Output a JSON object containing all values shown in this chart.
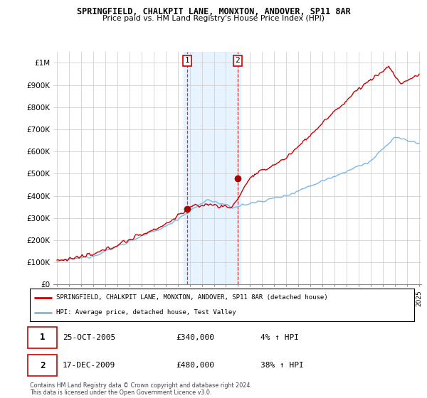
{
  "title_line1": "SPRINGFIELD, CHALKPIT LANE, MONXTON, ANDOVER, SP11 8AR",
  "title_line2": "Price paid vs. HM Land Registry's House Price Index (HPI)",
  "ylim": [
    0,
    1050000
  ],
  "yticks": [
    0,
    100000,
    200000,
    300000,
    400000,
    500000,
    600000,
    700000,
    800000,
    900000,
    1000000
  ],
  "ytick_labels": [
    "£0",
    "£100K",
    "£200K",
    "£300K",
    "£400K",
    "£500K",
    "£600K",
    "£700K",
    "£800K",
    "£900K",
    "£1M"
  ],
  "hpi_color": "#7ab8e8",
  "price_color": "#cc0000",
  "marker_color": "#aa0000",
  "sale1_date": "25-OCT-2005",
  "sale1_price": 340000,
  "sale1_pct": "4%",
  "sale2_date": "17-DEC-2009",
  "sale2_price": 480000,
  "sale2_pct": "38%",
  "legend_label1": "SPRINGFIELD, CHALKPIT LANE, MONXTON, ANDOVER, SP11 8AR (detached house)",
  "legend_label2": "HPI: Average price, detached house, Test Valley",
  "footnote": "Contains HM Land Registry data © Crown copyright and database right 2024.\nThis data is licensed under the Open Government Licence v3.0.",
  "background_color": "#ffffff",
  "grid_color": "#d0d0d0",
  "shade_color": "#ddeeff",
  "sale1_t": 2005.79,
  "sale2_t": 2009.96,
  "shade_x1": 2005.5,
  "shade_x2": 2010.2,
  "xlim_left": 1994.7,
  "xlim_right": 2025.2
}
